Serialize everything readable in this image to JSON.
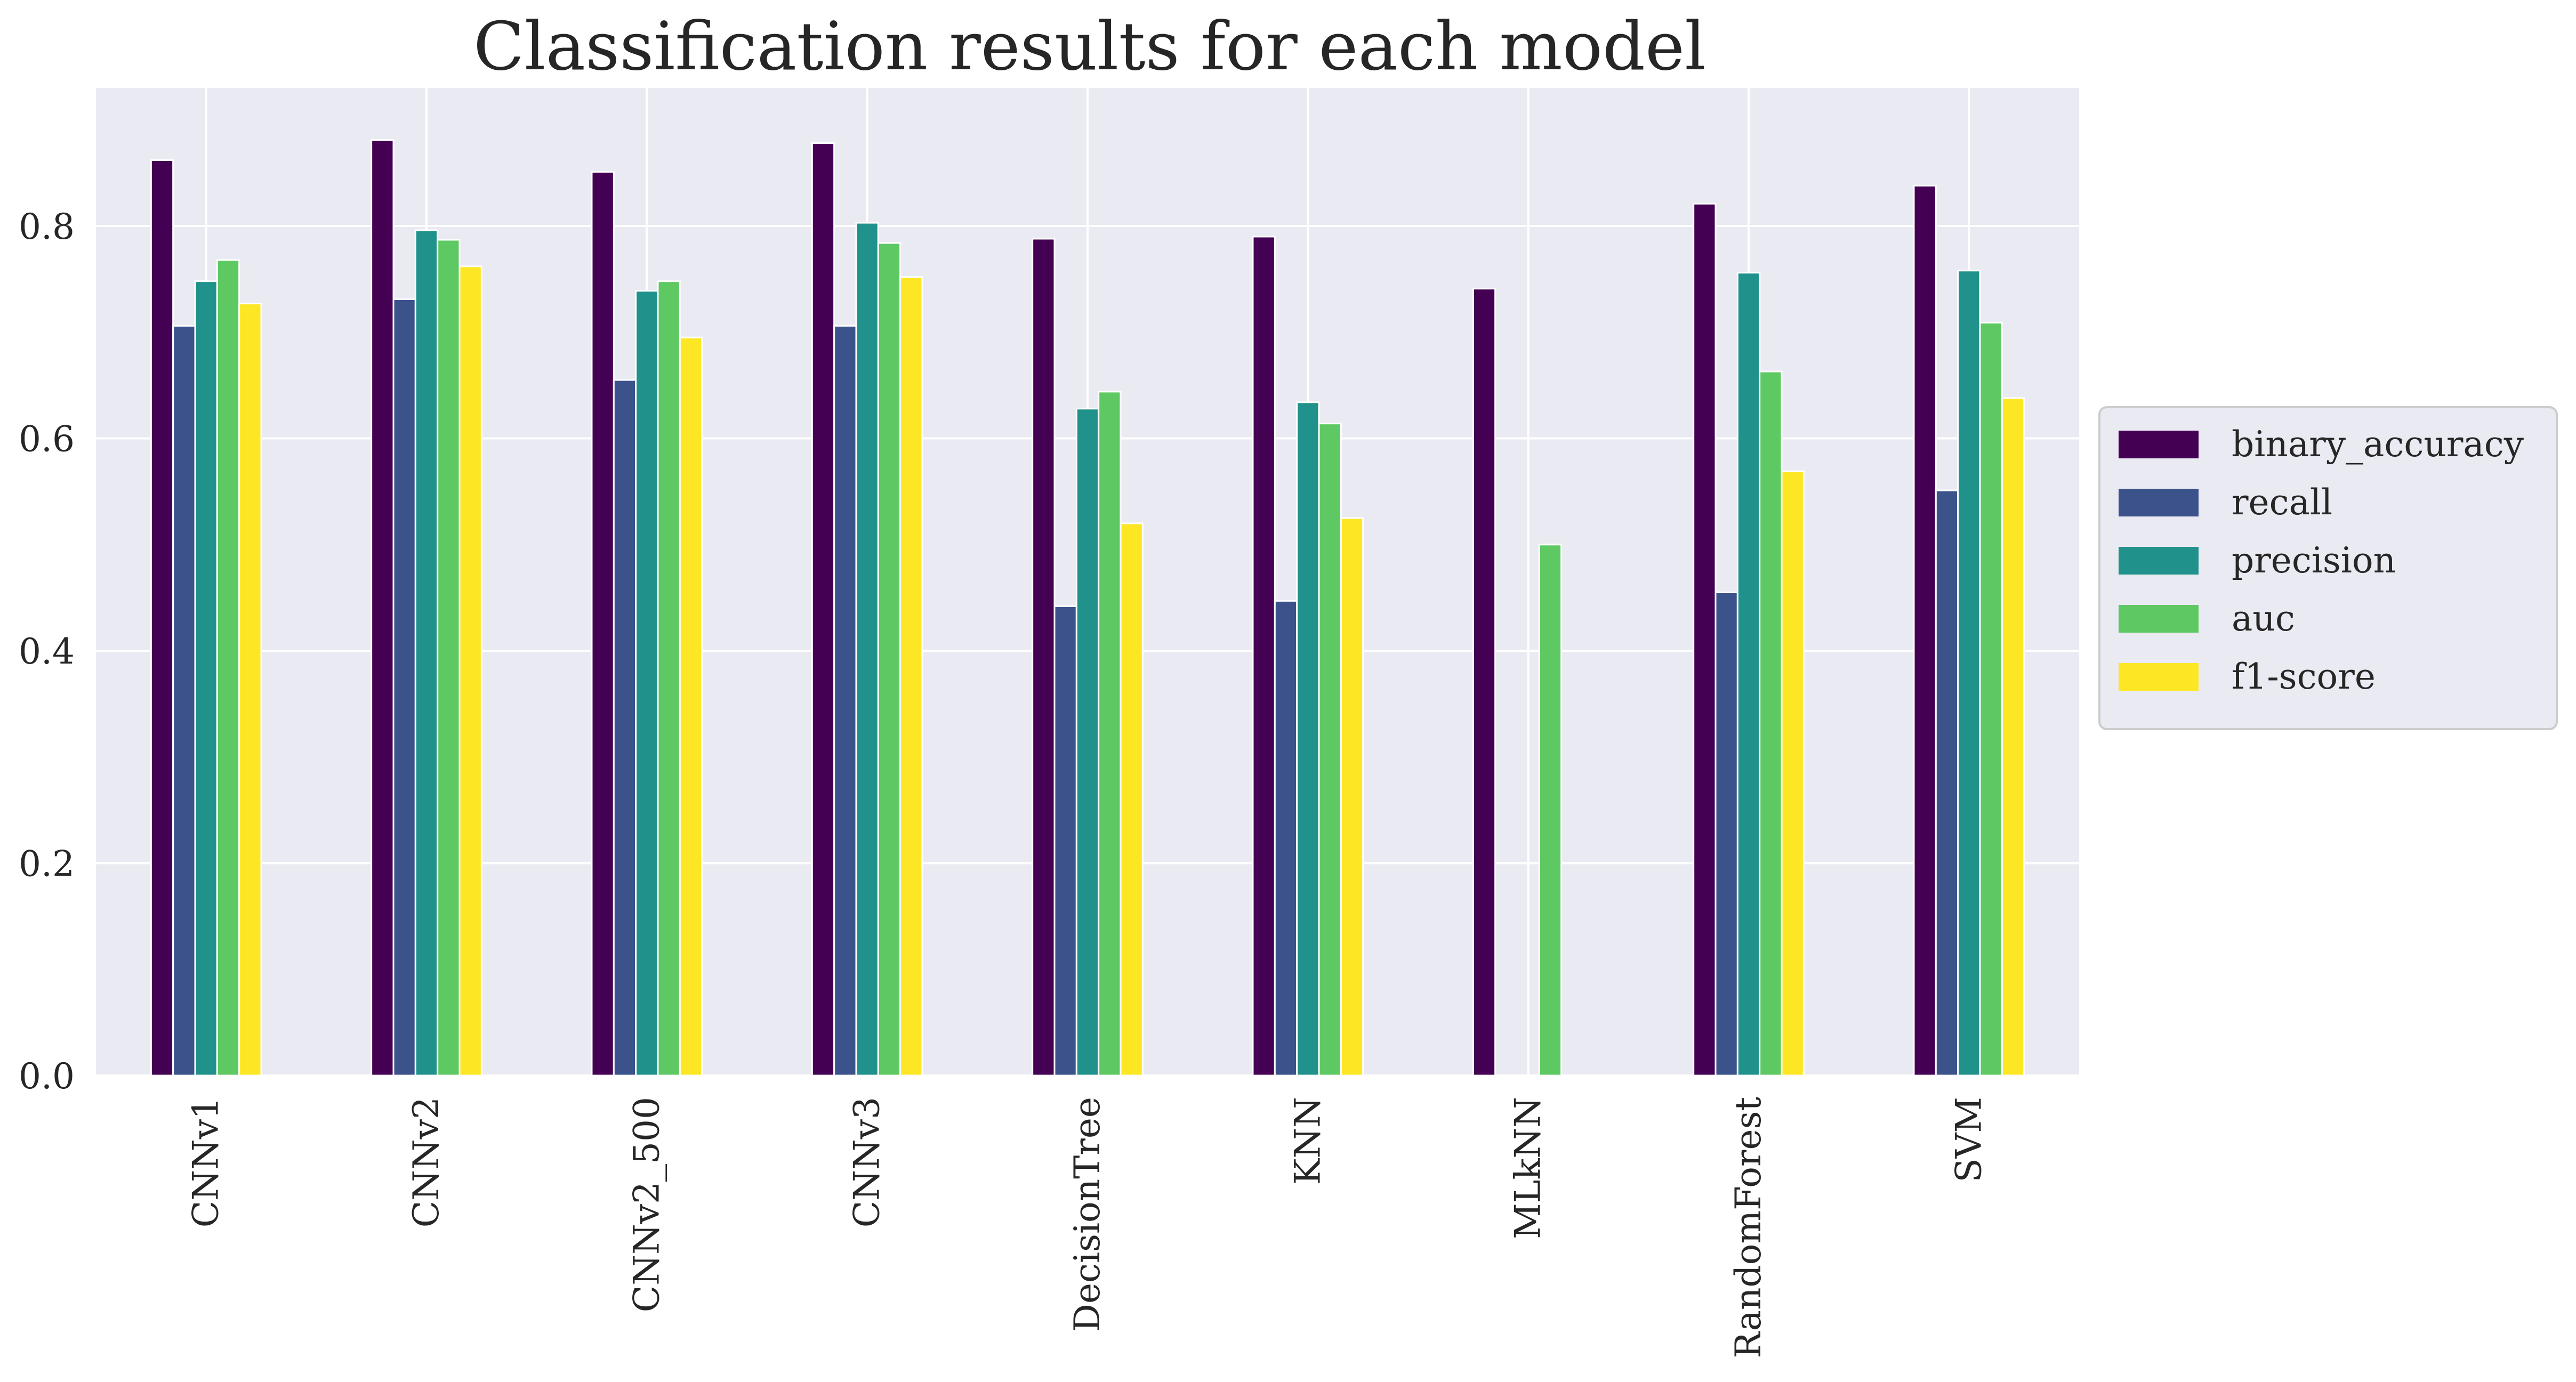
{
  "chart_data": {
    "type": "bar",
    "title": "Classification results for each model",
    "xlabel": "",
    "ylabel": "",
    "ylim": [
      0,
      0.93
    ],
    "yticks": [
      "0.0",
      "0.2",
      "0.4",
      "0.6",
      "0.8"
    ],
    "grid": true,
    "legend_position": "center-right, outside plot",
    "categories": [
      "CNNv1",
      "CNNv2",
      "CNNv2_500",
      "CNNv3",
      "DecisionTree",
      "KNN",
      "MLkNN",
      "RandomForest",
      "SVM"
    ],
    "series": [
      {
        "name": "binary_accuracy",
        "color": "#440154",
        "values": [
          0.862,
          0.881,
          0.851,
          0.878,
          0.788,
          0.79,
          0.741,
          0.821,
          0.838
        ]
      },
      {
        "name": "recall",
        "color": "#3b528b",
        "values": [
          0.706,
          0.731,
          0.655,
          0.706,
          0.442,
          0.447,
          0.0,
          0.455,
          0.551
        ]
      },
      {
        "name": "precision",
        "color": "#21918c",
        "values": [
          0.748,
          0.796,
          0.739,
          0.803,
          0.628,
          0.634,
          0.0,
          0.756,
          0.758
        ]
      },
      {
        "name": "auc",
        "color": "#5ec962",
        "values": [
          0.768,
          0.787,
          0.748,
          0.784,
          0.644,
          0.614,
          0.5,
          0.663,
          0.709
        ]
      },
      {
        "name": "f1-score",
        "color": "#fde725",
        "values": [
          0.727,
          0.762,
          0.695,
          0.752,
          0.52,
          0.525,
          0.0,
          0.569,
          0.638
        ]
      }
    ]
  }
}
